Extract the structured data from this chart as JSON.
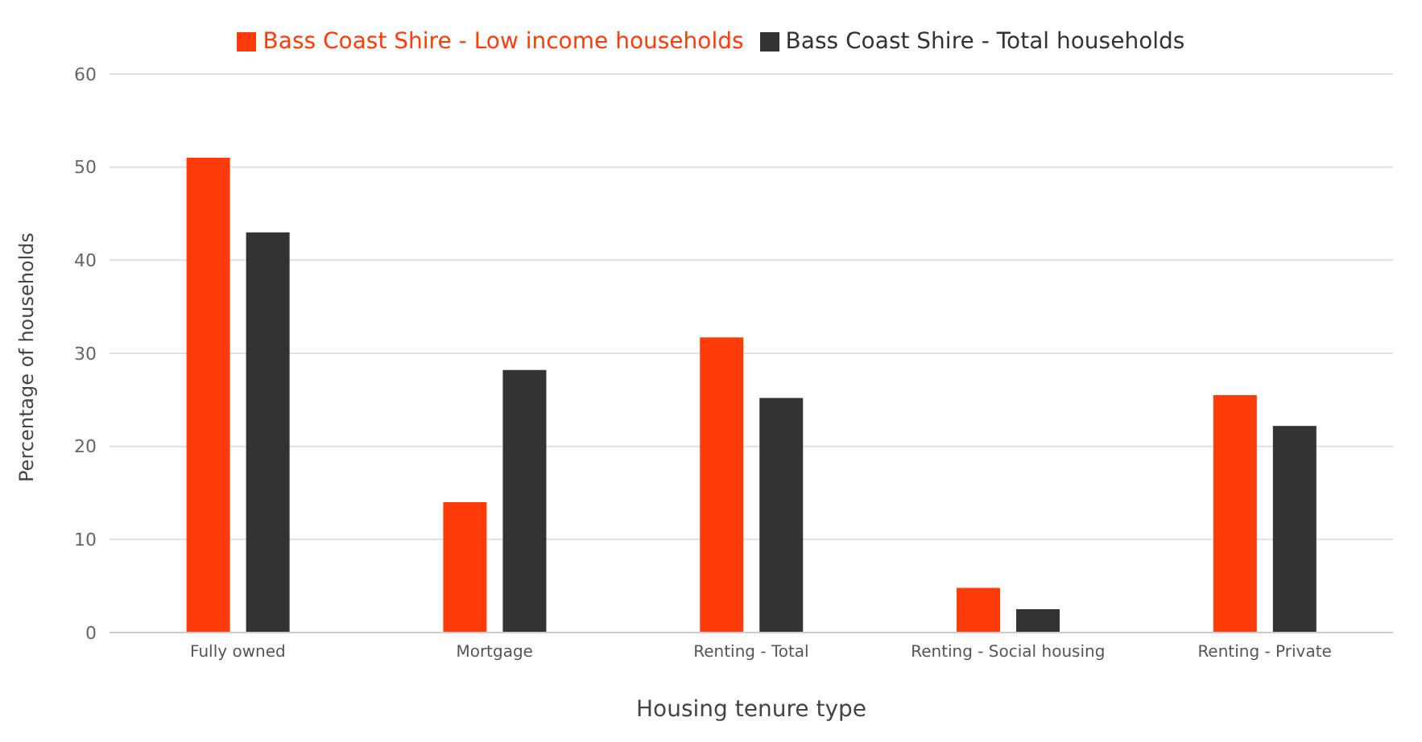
{
  "chart_data": {
    "type": "bar",
    "xlabel": "Housing tenure type",
    "ylabel": "Percentage of households",
    "categories": [
      "Fully owned",
      "Mortgage",
      "Renting - Total",
      "Renting - Social housing",
      "Renting - Private"
    ],
    "series": [
      {
        "name": "Bass Coast Shire - Low income households",
        "color": "#ff3b0a",
        "values": [
          51,
          14,
          31.7,
          4.8,
          25.5
        ]
      },
      {
        "name": "Bass Coast Shire - Total households",
        "color": "#333333",
        "values": [
          43,
          28.2,
          25.2,
          2.5,
          22.2
        ]
      }
    ],
    "ylim": [
      0,
      60
    ],
    "yticks": [
      0,
      10,
      20,
      30,
      40,
      50,
      60
    ],
    "grid": "y",
    "legend": "top"
  }
}
